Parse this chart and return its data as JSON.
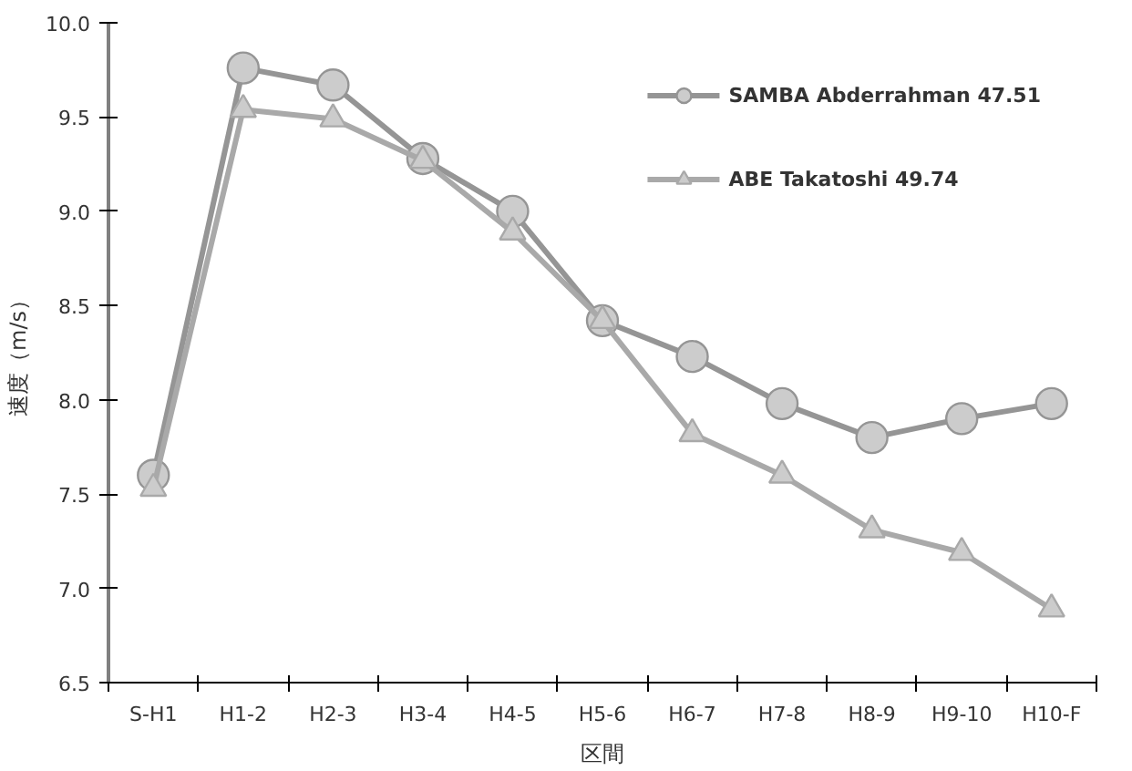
{
  "chart_data": {
    "type": "line",
    "xlabel": "区間",
    "ylabel": "速度（m/s）",
    "categories": [
      "S-H1",
      "H1-2",
      "H2-3",
      "H3-4",
      "H4-5",
      "H5-6",
      "H6-7",
      "H7-8",
      "H8-9",
      "H9-10",
      "H10-F"
    ],
    "series": [
      {
        "name": "SAMBA Abderrahman 47.51",
        "color": "#959595",
        "marker": "circle",
        "values": [
          7.6,
          9.76,
          9.67,
          9.28,
          9.0,
          8.42,
          8.23,
          7.98,
          7.8,
          7.9,
          7.98
        ]
      },
      {
        "name": "ABE Takatoshi 49.74",
        "color": "#a9a9a9",
        "marker": "triangle",
        "values": [
          7.53,
          9.54,
          9.49,
          9.27,
          8.89,
          8.42,
          7.82,
          7.6,
          7.31,
          7.19,
          6.89
        ]
      }
    ],
    "ylim": [
      6.5,
      10.0
    ],
    "yticks": [
      {
        "value": 6.5,
        "label": "6.5"
      },
      {
        "value": 7.0,
        "label": "7.0"
      },
      {
        "value": 7.5,
        "label": "7.5"
      },
      {
        "value": 8.0,
        "label": "8.0"
      },
      {
        "value": 8.5,
        "label": "8.5"
      },
      {
        "value": 9.0,
        "label": "9.0"
      },
      {
        "value": 9.5,
        "label": "9.5"
      },
      {
        "value": 10.0,
        "label": "10.0"
      }
    ],
    "grid": false,
    "legend": "top right",
    "line_style": "solid"
  }
}
